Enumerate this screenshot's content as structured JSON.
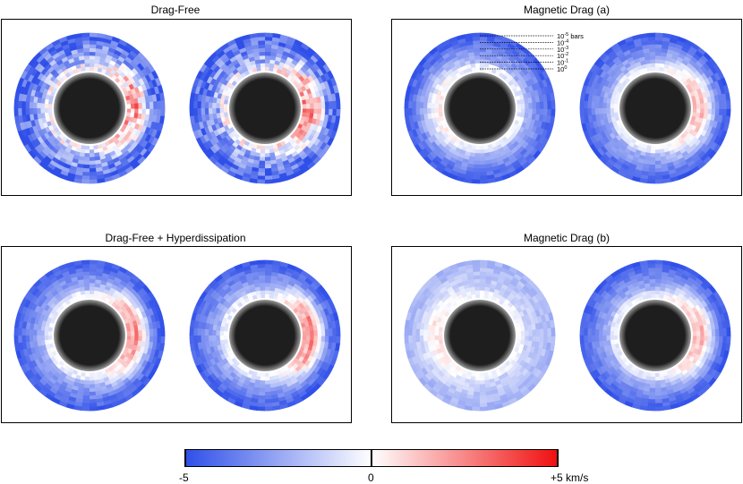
{
  "colors": {
    "negative": "#2f4fe8",
    "zero": "#ffffff",
    "positive": "#f00f0f",
    "planet_core": "#1e1e1e",
    "planet_edge": "#9a9a9a"
  },
  "chart_data": [
    {
      "type": "heatmap",
      "title": "Drag-Free",
      "description": "Line-of-sight velocity maps on the limb annulus; two disks per panel",
      "disks": [
        {
          "dominant": "blue",
          "red_limb": "east",
          "red_strength": 0.85,
          "noise": 0.35
        },
        {
          "dominant": "blue",
          "red_limb": "east",
          "red_strength": 1.0,
          "noise": 0.35
        }
      ]
    },
    {
      "type": "heatmap",
      "title": "Magnetic Drag (a)",
      "pressure_labels": [
        "10-5 bars",
        "10-4",
        "10-3",
        "10-2",
        "10-1",
        "10 0"
      ],
      "pressure_exponents": [
        "-5",
        "-4",
        "-3",
        "-2",
        "-1",
        "0"
      ],
      "disks": [
        {
          "dominant": "blue",
          "red_limb": "west",
          "red_strength": 0.35,
          "noise": 0.12
        },
        {
          "dominant": "blue",
          "red_limb": "east",
          "red_strength": 0.7,
          "noise": 0.12
        }
      ]
    },
    {
      "type": "heatmap",
      "title": "Drag-Free + Hyperdissipation",
      "disks": [
        {
          "dominant": "blue",
          "red_limb": "east",
          "red_strength": 0.9,
          "noise": 0.12
        },
        {
          "dominant": "blue",
          "red_limb": "east",
          "red_strength": 1.0,
          "noise": 0.12
        }
      ]
    },
    {
      "type": "heatmap",
      "title": "Magnetic Drag (b)",
      "disks": [
        {
          "dominant": "light",
          "red_limb": "west",
          "red_strength": 0.35,
          "noise": 0.1
        },
        {
          "dominant": "blue",
          "red_limb": "east",
          "red_strength": 0.75,
          "noise": 0.1
        }
      ]
    }
  ],
  "colorbar": {
    "min": -5,
    "max": 5,
    "label_min": "-5",
    "label_mid": "0",
    "label_max": "+5 km/s"
  }
}
